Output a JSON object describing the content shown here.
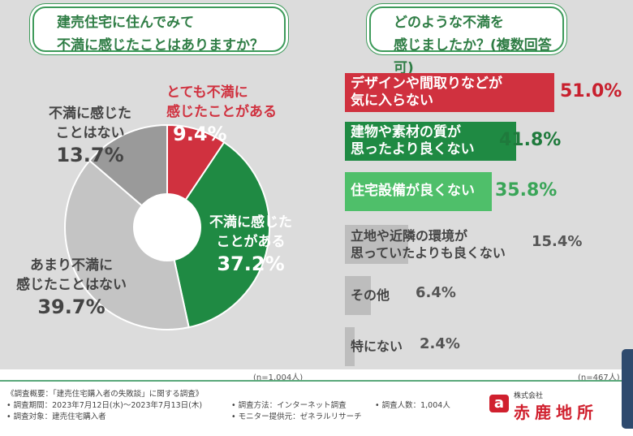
{
  "q1": {
    "line1": "建売住宅に住んでみて",
    "line2": "不満に感じたことはありますか？"
  },
  "q2": {
    "line1": "どのような不満を",
    "line2": "感じましたか？(複数回答可)"
  },
  "chart_data": [
    {
      "type": "pie",
      "title": "建売住宅に住んでみて不満に感じたことはありますか？",
      "slices": [
        {
          "label1": "とても不満に",
          "label2": "感じたことがある",
          "value": 9.4,
          "display": "9.4%",
          "color": "#d0313f"
        },
        {
          "label1": "不満に感じた",
          "label2": "ことがある",
          "value": 37.2,
          "display": "37.2%",
          "color": "#1f8a43"
        },
        {
          "label1": "あまり不満に",
          "label2": "感じたことはない",
          "value": 39.7,
          "display": "39.7%",
          "color": "#c4c4c4"
        },
        {
          "label1": "不満に感じた",
          "label2": "ことはない",
          "value": 13.7,
          "display": "13.7%",
          "color": "#9a9a9a"
        }
      ],
      "n": "(n=1,004人)"
    },
    {
      "type": "bar",
      "title": "どのような不満を感じましたか？(複数回答可)",
      "bars": [
        {
          "label1": "デザインや間取りなどが",
          "label2": "気に入らない",
          "value": 51.0,
          "display": "51.0%",
          "color": "#d0313f",
          "text": "#fff",
          "vcolor": "#c8202e"
        },
        {
          "label1": "建物や素材の質が",
          "label2": "思ったより良くない",
          "value": 41.8,
          "display": "41.8%",
          "color": "#1f8a43",
          "text": "#fff",
          "vcolor": "#1f7a3c"
        },
        {
          "label1": "住宅設備が良くない",
          "label2": "",
          "value": 35.8,
          "display": "35.8%",
          "color": "#4fbf6a",
          "text": "#fff",
          "vcolor": "#3aa558"
        },
        {
          "label1": "立地や近隣の環境が",
          "label2": "思っていたよりも良くない",
          "value": 15.4,
          "display": "15.4%",
          "color": "#b5b5b5",
          "text": "#444",
          "vcolor": "#555"
        },
        {
          "label1": "その他",
          "label2": "",
          "value": 6.4,
          "display": "6.4%",
          "color": "#b5b5b5",
          "text": "#444",
          "vcolor": "#555"
        },
        {
          "label1": "特にない",
          "label2": "",
          "value": 2.4,
          "display": "2.4%",
          "color": "#b5b5b5",
          "text": "#444",
          "vcolor": "#555"
        }
      ],
      "n": "(n=467人)"
    }
  ],
  "footer": {
    "title": "《調査概要：「建売住宅購入者の失敗談」に関する調査》",
    "period": "• 調査期間：2023年7月12日(水)〜2023年7月13日(木)",
    "target": "• 調査対象：建売住宅購入者",
    "method": "• 調査方法：インターネット調査",
    "monitor": "• モニター提供元：ゼネラルリサーチ",
    "count": "• 調査人数：1,004人"
  },
  "logo": {
    "company_type": "株式会社",
    "name": "赤鹿地所"
  }
}
